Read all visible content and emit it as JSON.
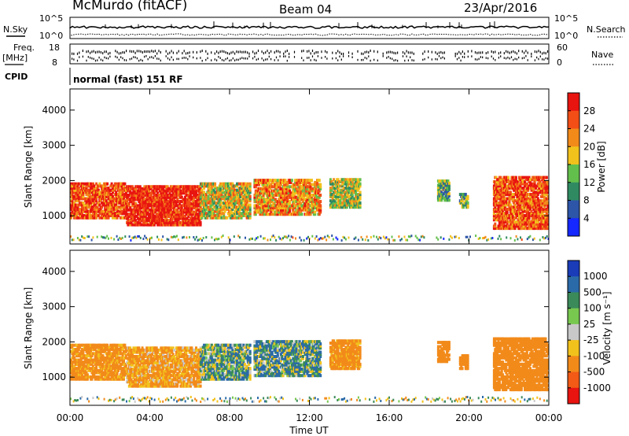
{
  "header": {
    "station": "McMurdo (fitACF)",
    "beam": "Beam 04",
    "date": "23/Apr/2016"
  },
  "top_panels": {
    "nsky_label": "N.Sky",
    "nsearch_label": "N.Search",
    "freq_label": "Freq.",
    "freq_unit": "[MHz]",
    "nave_label": "Nave",
    "cpid_label": "CPID",
    "cpid_value": "normal (fast) 151 RF",
    "noise_ticks_left": [
      "10^5",
      "10^0"
    ],
    "noise_ticks_right": [
      "10^5",
      "10^0"
    ],
    "freq_ticks": [
      "18",
      "8"
    ],
    "nave_ticks": [
      "60",
      "0"
    ]
  },
  "chart_data": [
    {
      "type": "heatmap",
      "panel": "power",
      "ylabel": "Slant Range [km]",
      "y_ticks": [
        "1000",
        "2000",
        "3000",
        "4000"
      ],
      "ylim": [
        200,
        4600
      ],
      "colorbar_label": "Power [dB]",
      "colorbar_ticks": [
        "4",
        "8",
        "12",
        "16",
        "20",
        "24",
        "28"
      ],
      "colors": [
        "#1428ff",
        "#2d55a8",
        "#2f8a62",
        "#63bf4c",
        "#f2c21c",
        "#f28a1a",
        "#f24e16",
        "#e81410"
      ],
      "echo_regions": [
        {
          "t_start": 0.0,
          "t_end": 2.8,
          "range_low": 900,
          "range_high": 1900,
          "power_db": 24
        },
        {
          "t_start": 2.8,
          "t_end": 6.5,
          "range_low": 700,
          "range_high": 1800,
          "power_db": 28
        },
        {
          "t_start": 6.5,
          "t_end": 9.0,
          "range_low": 900,
          "range_high": 1900,
          "power_db": 16
        },
        {
          "t_start": 9.2,
          "t_end": 12.5,
          "range_low": 1000,
          "range_high": 2000,
          "power_db": 20
        },
        {
          "t_start": 13.0,
          "t_end": 14.5,
          "range_low": 1200,
          "range_high": 2000,
          "power_db": 14
        },
        {
          "t_start": 18.4,
          "t_end": 19.0,
          "range_low": 1400,
          "range_high": 2000,
          "power_db": 10
        },
        {
          "t_start": 19.5,
          "t_end": 19.9,
          "range_low": 1200,
          "range_high": 1600,
          "power_db": 10
        },
        {
          "t_start": 21.2,
          "t_end": 23.9,
          "range_low": 600,
          "range_high": 2100,
          "power_db": 24
        }
      ]
    },
    {
      "type": "heatmap",
      "panel": "velocity",
      "xlabel": "Time UT",
      "ylabel": "Slant Range [km]",
      "x_ticks": [
        "00:00",
        "04:00",
        "08:00",
        "12:00",
        "16:00",
        "20:00",
        "00:00"
      ],
      "xlim": [
        0,
        24
      ],
      "y_ticks": [
        "1000",
        "2000",
        "3000",
        "4000"
      ],
      "ylim": [
        200,
        4600
      ],
      "colorbar_label": "Velocity [m s⁻¹]",
      "colorbar_ticks": [
        "1000",
        "500",
        "100",
        "25",
        "-25",
        "-100",
        "-500",
        "-1000"
      ],
      "colors": [
        "#1a3cb8",
        "#2a6aa8",
        "#3a8a5a",
        "#78c850",
        "#c8c8c8",
        "#f2c21c",
        "#f28a1a",
        "#f25a16",
        "#e81410"
      ],
      "echo_regions": [
        {
          "t_start": 0.0,
          "t_end": 2.8,
          "range_low": 900,
          "range_high": 1900,
          "velocity": -200
        },
        {
          "t_start": 2.8,
          "t_end": 6.5,
          "range_low": 700,
          "range_high": 1800,
          "velocity": -150
        },
        {
          "t_start": 6.5,
          "t_end": 9.0,
          "range_low": 900,
          "range_high": 1900,
          "velocity": 50
        },
        {
          "t_start": 9.2,
          "t_end": 12.5,
          "range_low": 1000,
          "range_high": 2000,
          "velocity": 80
        },
        {
          "t_start": 13.0,
          "t_end": 14.5,
          "range_low": 1200,
          "range_high": 2000,
          "velocity": -200
        },
        {
          "t_start": 18.4,
          "t_end": 19.0,
          "range_low": 1400,
          "range_high": 2000,
          "velocity": -300
        },
        {
          "t_start": 19.5,
          "t_end": 19.9,
          "range_low": 1200,
          "range_high": 1600,
          "velocity": -300
        },
        {
          "t_start": 21.2,
          "t_end": 23.9,
          "range_low": 600,
          "range_high": 2100,
          "velocity": -300
        }
      ]
    }
  ]
}
